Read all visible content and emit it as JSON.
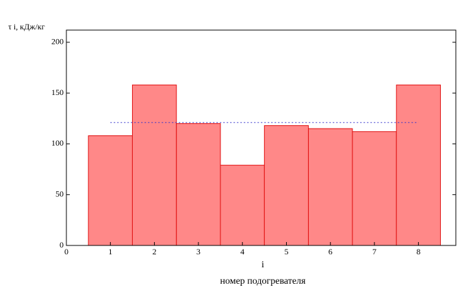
{
  "chart_data": {
    "type": "bar",
    "y_label": "τ i,  кДж/кг",
    "x_label": "i",
    "x_title": "номер подогревателя",
    "x": [
      1,
      2,
      3,
      4,
      5,
      6,
      7,
      8
    ],
    "values": [
      108,
      158,
      120,
      79,
      118,
      115,
      112,
      158
    ],
    "color": "#ff8888",
    "edge_color": "#e01010",
    "mean_line": {
      "value": 121,
      "x": [
        1,
        8
      ],
      "color": "#3333cc"
    },
    "xlim": [
      0,
      8.85
    ],
    "xticks": [
      0,
      1,
      2,
      3,
      4,
      5,
      6,
      7,
      8
    ],
    "ylim": [
      0,
      212
    ],
    "yticks": [
      0,
      50,
      100,
      150,
      200
    ]
  }
}
